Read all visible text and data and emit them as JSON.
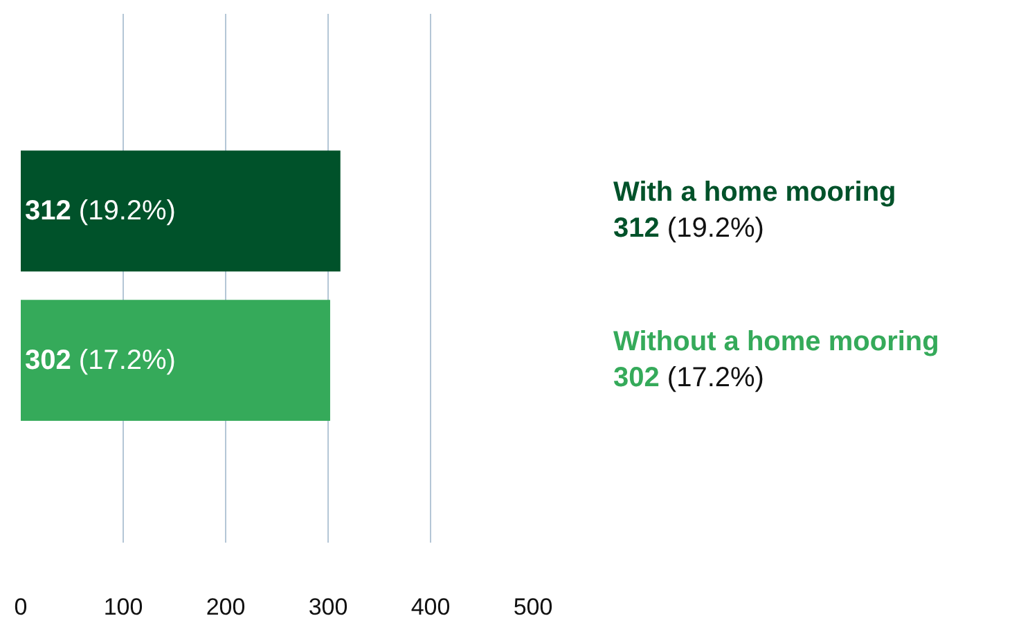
{
  "chart_data": {
    "type": "bar",
    "orientation": "horizontal",
    "categories": [
      null,
      null
    ],
    "series": [
      {
        "name": "With a home mooring",
        "color": "#00522a",
        "values": [
          312,
          null
        ],
        "value_labels": [
          "312 (19.2%)",
          null
        ]
      },
      {
        "name": "Without a home mooring",
        "color": "#35aa5a",
        "values": [
          null,
          302
        ],
        "value_labels": [
          null,
          "302 (17.2%)"
        ]
      }
    ],
    "xlim": [
      0,
      500
    ],
    "xticks": [
      0,
      100,
      200,
      300,
      400,
      500
    ],
    "grid": "x",
    "legend": false
  }
}
